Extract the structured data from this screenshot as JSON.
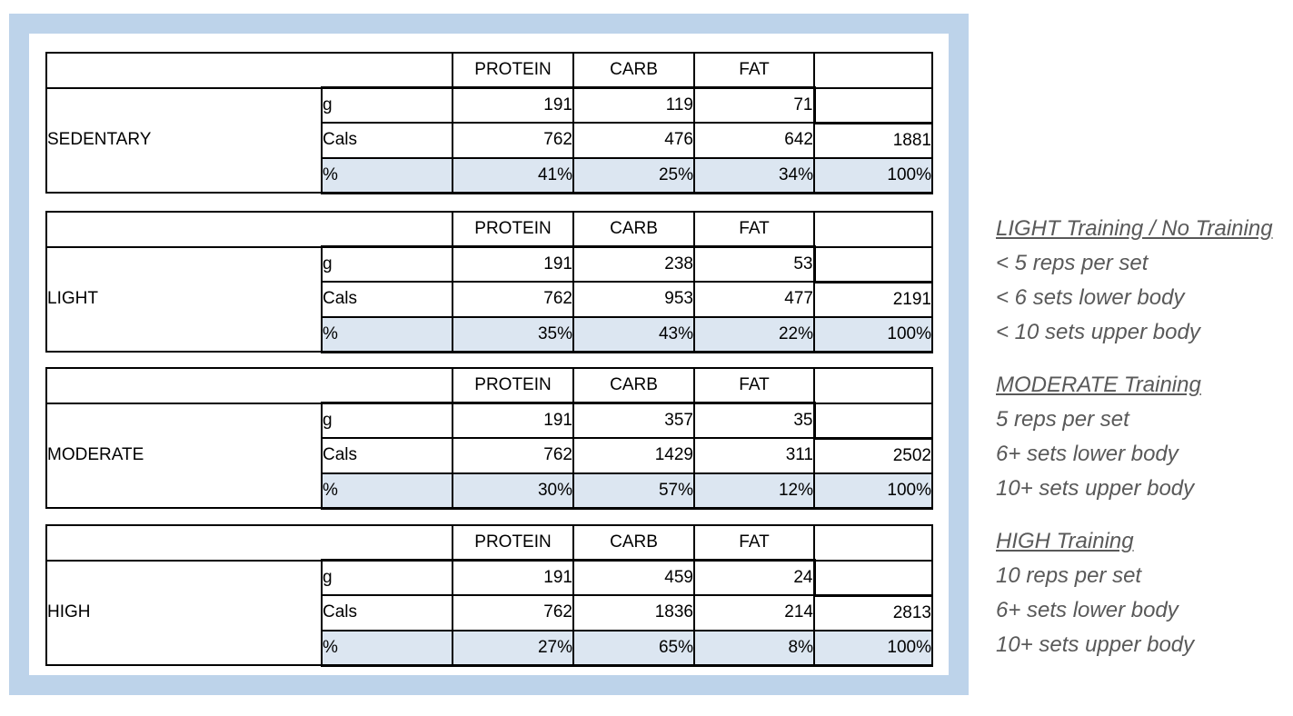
{
  "table": {
    "columns": [
      "PROTEIN",
      "CARB",
      "FAT"
    ],
    "row_labels": {
      "grams": "g",
      "cals": "Cals",
      "percent": "%"
    },
    "blocks": [
      {
        "name": "SEDENTARY",
        "grams": [
          "191",
          "119",
          "71"
        ],
        "cals": [
          "762",
          "476",
          "642"
        ],
        "cals_total": "1881",
        "percent": [
          "41%",
          "25%",
          "34%"
        ],
        "percent_total": "100%"
      },
      {
        "name": "LIGHT",
        "grams": [
          "191",
          "238",
          "53"
        ],
        "cals": [
          "762",
          "953",
          "477"
        ],
        "cals_total": "2191",
        "percent": [
          "35%",
          "43%",
          "22%"
        ],
        "percent_total": "100%"
      },
      {
        "name": "MODERATE",
        "grams": [
          "191",
          "357",
          "35"
        ],
        "cals": [
          "762",
          "1429",
          "311"
        ],
        "cals_total": "2502",
        "percent": [
          "30%",
          "57%",
          "12%"
        ],
        "percent_total": "100%"
      },
      {
        "name": "HIGH",
        "grams": [
          "191",
          "459",
          "24"
        ],
        "cals": [
          "762",
          "1836",
          "214"
        ],
        "cals_total": "2813",
        "percent": [
          "27%",
          "65%",
          "8%"
        ],
        "percent_total": "100%"
      }
    ]
  },
  "notes": [
    {
      "title": "LIGHT Training / No Training",
      "lines": [
        "< 5 reps per set",
        "< 6 sets lower body",
        "< 10 sets upper body"
      ]
    },
    {
      "title": "MODERATE Training",
      "lines": [
        "5 reps per set",
        "6+ sets lower body",
        "10+ sets upper body"
      ]
    },
    {
      "title": "HIGH Training",
      "lines": [
        "10 reps per set",
        "6+ sets lower body",
        "10+ sets upper body"
      ]
    }
  ],
  "colors": {
    "frame": "#bdd3ea",
    "pct-row-bg": "#dce6f1",
    "table-border": "#000000",
    "notes-text": "#595959"
  }
}
